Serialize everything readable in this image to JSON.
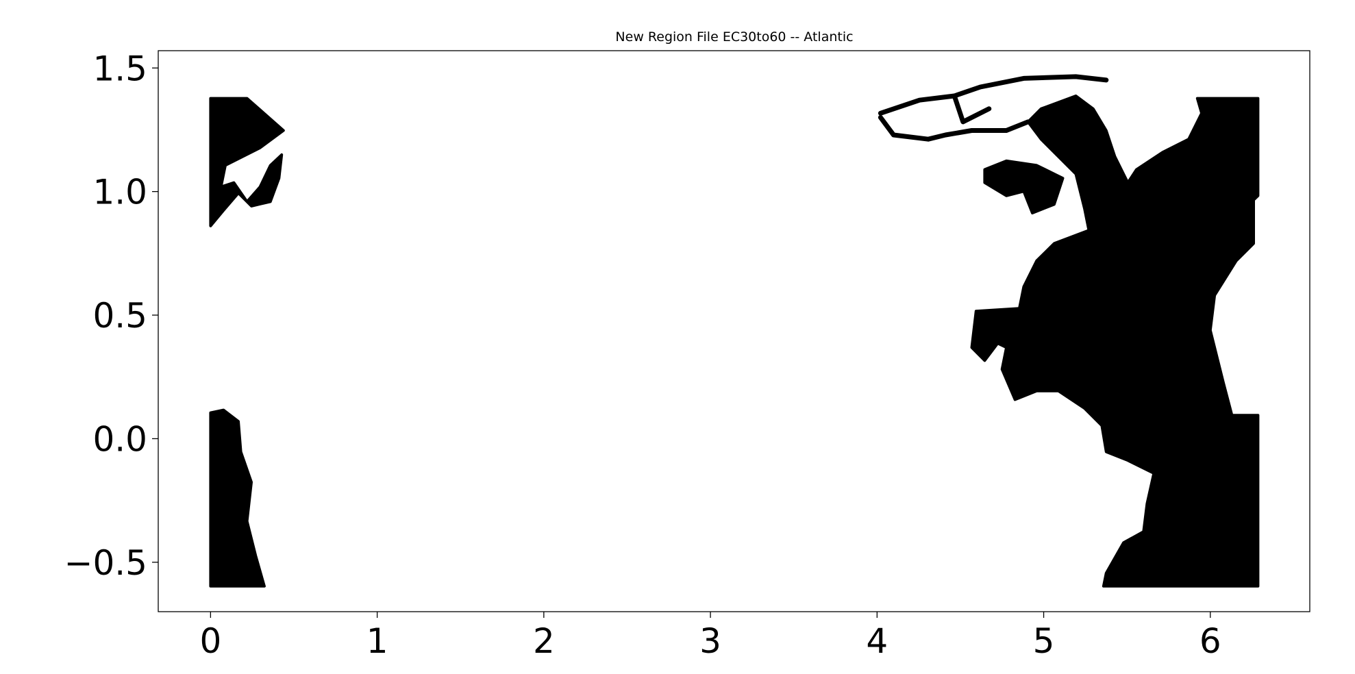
{
  "chart_data": {
    "type": "scatter",
    "title": "New Region File EC30to60 -- Atlantic",
    "xlabel": "",
    "ylabel": "",
    "xlim": [
      -0.314,
      6.597
    ],
    "ylim": [
      -0.7,
      1.57
    ],
    "xticks": [
      0,
      1,
      2,
      3,
      4,
      5,
      6
    ],
    "xtick_labels": [
      "0",
      "1",
      "2",
      "3",
      "4",
      "5",
      "6"
    ],
    "yticks": [
      -0.5,
      0.0,
      0.5,
      1.0,
      1.5
    ],
    "ytick_labels": [
      "−0.5",
      "0.0",
      "0.5",
      "1.0",
      "1.5"
    ],
    "grid": false,
    "marker_color": "#000000",
    "regions": [
      {
        "kind": "filled",
        "points": [
          [
            0,
            1.377
          ],
          [
            0.219,
            1.377
          ],
          [
            0.4375,
            1.247
          ],
          [
            0.297,
            1.177
          ],
          [
            0.089,
            1.106
          ],
          [
            0.0625,
            1.019
          ],
          [
            0.14,
            1.036
          ],
          [
            0.219,
            0.959
          ],
          [
            0.297,
            1.019
          ],
          [
            0.359,
            1.106
          ],
          [
            0.427,
            1.149
          ],
          [
            0.411,
            1.054
          ],
          [
            0.359,
            0.959
          ],
          [
            0.245,
            0.941
          ],
          [
            0.167,
            0.994
          ],
          [
            0.078,
            0.924
          ],
          [
            0,
            0.861
          ]
        ]
      },
      {
        "kind": "filled",
        "points": [
          [
            0,
            0.105
          ],
          [
            0.078,
            0.116
          ],
          [
            0.167,
            0.07
          ],
          [
            0.182,
            -0.053
          ],
          [
            0.245,
            -0.176
          ],
          [
            0.219,
            -0.334
          ],
          [
            0.271,
            -0.474
          ],
          [
            0.323,
            -0.597
          ],
          [
            0,
            -0.597
          ]
        ]
      },
      {
        "kind": "filled",
        "points": [
          [
            5.359,
            -0.597
          ],
          [
            6.286,
            -0.597
          ],
          [
            6.286,
            0.095
          ],
          [
            6.13,
            0.095
          ],
          [
            6.078,
            0.228
          ],
          [
            6.0,
            0.439
          ],
          [
            6.026,
            0.58
          ],
          [
            6.156,
            0.72
          ],
          [
            6.26,
            0.79
          ],
          [
            6.26,
            0.966
          ],
          [
            6.286,
            0.983
          ],
          [
            6.286,
            1.377
          ],
          [
            5.922,
            1.377
          ],
          [
            5.948,
            1.317
          ],
          [
            5.87,
            1.212
          ],
          [
            5.714,
            1.159
          ],
          [
            5.557,
            1.089
          ],
          [
            5.505,
            1.036
          ],
          [
            5.427,
            1.142
          ],
          [
            5.375,
            1.247
          ],
          [
            5.297,
            1.335
          ],
          [
            5.193,
            1.387
          ],
          [
            4.984,
            1.335
          ],
          [
            4.906,
            1.282
          ],
          [
            4.984,
            1.212
          ],
          [
            5.193,
            1.071
          ],
          [
            5.245,
            0.931
          ],
          [
            5.271,
            0.843
          ],
          [
            5.063,
            0.79
          ],
          [
            4.958,
            0.72
          ],
          [
            4.88,
            0.615
          ],
          [
            4.854,
            0.527
          ],
          [
            4.594,
            0.516
          ],
          [
            4.568,
            0.369
          ],
          [
            4.646,
            0.316
          ],
          [
            4.724,
            0.386
          ],
          [
            4.776,
            0.369
          ],
          [
            4.75,
            0.281
          ],
          [
            4.828,
            0.158
          ],
          [
            4.958,
            0.193
          ],
          [
            5.089,
            0.193
          ],
          [
            5.245,
            0.123
          ],
          [
            5.349,
            0.053
          ],
          [
            5.375,
            -0.053
          ],
          [
            5.505,
            -0.088
          ],
          [
            5.661,
            -0.14
          ],
          [
            5.62,
            -0.263
          ],
          [
            5.599,
            -0.376
          ],
          [
            5.479,
            -0.421
          ],
          [
            5.375,
            -0.544
          ]
        ]
      },
      {
        "kind": "filled",
        "points": [
          [
            4.646,
            1.089
          ],
          [
            4.776,
            1.124
          ],
          [
            4.958,
            1.106
          ],
          [
            5.115,
            1.054
          ],
          [
            5.063,
            0.948
          ],
          [
            4.932,
            0.913
          ],
          [
            4.88,
            1.001
          ],
          [
            4.776,
            0.983
          ],
          [
            4.646,
            1.036
          ]
        ]
      },
      {
        "kind": "strand",
        "points": [
          [
            4.021,
            1.317
          ],
          [
            4.255,
            1.37
          ],
          [
            4.464,
            1.387
          ],
          [
            4.62,
            1.423
          ],
          [
            4.88,
            1.458
          ],
          [
            5.193,
            1.465
          ],
          [
            5.375,
            1.451
          ]
        ]
      },
      {
        "kind": "strand",
        "points": [
          [
            4.021,
            1.3
          ],
          [
            4.099,
            1.229
          ],
          [
            4.307,
            1.212
          ],
          [
            4.411,
            1.229
          ],
          [
            4.568,
            1.247
          ],
          [
            4.776,
            1.247
          ],
          [
            4.906,
            1.282
          ]
        ]
      },
      {
        "kind": "strand",
        "points": [
          [
            4.464,
            1.387
          ],
          [
            4.516,
            1.282
          ],
          [
            4.672,
            1.335
          ]
        ]
      }
    ]
  }
}
